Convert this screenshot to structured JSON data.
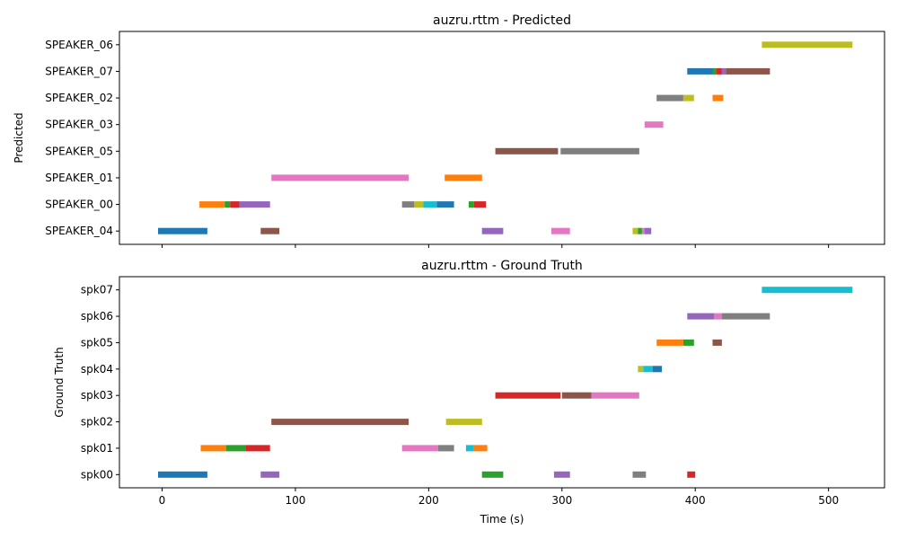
{
  "palette": {
    "blue": "#1f77b4",
    "orange": "#ff7f0e",
    "green": "#2ca02c",
    "red": "#d62728",
    "purple": "#9467bd",
    "brown": "#8c564b",
    "pink": "#e377c2",
    "gray": "#7f7f7f",
    "olive": "#bcbd22",
    "cyan": "#17becf"
  },
  "chart_data": [
    {
      "type": "timeline",
      "title": "auzru.rttm - Predicted",
      "ylabel": "Predicted",
      "xlabel": "",
      "xlim": [
        -32,
        542
      ],
      "xticks": [
        0,
        100,
        200,
        300,
        400,
        500
      ],
      "speakers": [
        "SPEAKER_04",
        "SPEAKER_00",
        "SPEAKER_01",
        "SPEAKER_05",
        "SPEAKER_03",
        "SPEAKER_02",
        "SPEAKER_07",
        "SPEAKER_06"
      ],
      "segments": [
        {
          "speaker": "SPEAKER_04",
          "start": -3,
          "end": 34,
          "color": "blue"
        },
        {
          "speaker": "SPEAKER_04",
          "start": 74,
          "end": 88,
          "color": "brown"
        },
        {
          "speaker": "SPEAKER_04",
          "start": 240,
          "end": 256,
          "color": "purple"
        },
        {
          "speaker": "SPEAKER_04",
          "start": 292,
          "end": 306,
          "color": "pink"
        },
        {
          "speaker": "SPEAKER_04",
          "start": 353,
          "end": 357,
          "color": "olive"
        },
        {
          "speaker": "SPEAKER_04",
          "start": 357,
          "end": 360,
          "color": "green"
        },
        {
          "speaker": "SPEAKER_04",
          "start": 360,
          "end": 362,
          "color": "pink"
        },
        {
          "speaker": "SPEAKER_04",
          "start": 362,
          "end": 367,
          "color": "purple"
        },
        {
          "speaker": "SPEAKER_00",
          "start": 28,
          "end": 47,
          "color": "orange"
        },
        {
          "speaker": "SPEAKER_00",
          "start": 47,
          "end": 51,
          "color": "green"
        },
        {
          "speaker": "SPEAKER_00",
          "start": 51,
          "end": 58,
          "color": "red"
        },
        {
          "speaker": "SPEAKER_00",
          "start": 58,
          "end": 81,
          "color": "purple"
        },
        {
          "speaker": "SPEAKER_00",
          "start": 180,
          "end": 189,
          "color": "gray"
        },
        {
          "speaker": "SPEAKER_00",
          "start": 189,
          "end": 196,
          "color": "olive"
        },
        {
          "speaker": "SPEAKER_00",
          "start": 196,
          "end": 206,
          "color": "cyan"
        },
        {
          "speaker": "SPEAKER_00",
          "start": 206,
          "end": 219,
          "color": "blue"
        },
        {
          "speaker": "SPEAKER_00",
          "start": 230,
          "end": 234,
          "color": "green"
        },
        {
          "speaker": "SPEAKER_00",
          "start": 234,
          "end": 243,
          "color": "red"
        },
        {
          "speaker": "SPEAKER_01",
          "start": 82,
          "end": 185,
          "color": "pink"
        },
        {
          "speaker": "SPEAKER_01",
          "start": 212,
          "end": 240,
          "color": "orange"
        },
        {
          "speaker": "SPEAKER_05",
          "start": 250,
          "end": 297,
          "color": "brown"
        },
        {
          "speaker": "SPEAKER_05",
          "start": 299,
          "end": 358,
          "color": "gray"
        },
        {
          "speaker": "SPEAKER_03",
          "start": 362,
          "end": 376,
          "color": "pink"
        },
        {
          "speaker": "SPEAKER_02",
          "start": 371,
          "end": 391,
          "color": "gray"
        },
        {
          "speaker": "SPEAKER_02",
          "start": 391,
          "end": 399,
          "color": "olive"
        },
        {
          "speaker": "SPEAKER_02",
          "start": 413,
          "end": 421,
          "color": "orange"
        },
        {
          "speaker": "SPEAKER_07",
          "start": 394,
          "end": 413,
          "color": "blue"
        },
        {
          "speaker": "SPEAKER_07",
          "start": 413,
          "end": 416,
          "color": "green"
        },
        {
          "speaker": "SPEAKER_07",
          "start": 416,
          "end": 420,
          "color": "red"
        },
        {
          "speaker": "SPEAKER_07",
          "start": 420,
          "end": 423,
          "color": "purple"
        },
        {
          "speaker": "SPEAKER_07",
          "start": 423,
          "end": 456,
          "color": "brown"
        },
        {
          "speaker": "SPEAKER_06",
          "start": 450,
          "end": 518,
          "color": "olive"
        }
      ]
    },
    {
      "type": "timeline",
      "title": "auzru.rttm - Ground Truth",
      "ylabel": "Ground Truth",
      "xlabel": "Time (s)",
      "xlim": [
        -32,
        542
      ],
      "xticks": [
        0,
        100,
        200,
        300,
        400,
        500
      ],
      "speakers": [
        "spk00",
        "spk01",
        "spk02",
        "spk03",
        "spk04",
        "spk05",
        "spk06",
        "spk07"
      ],
      "segments": [
        {
          "speaker": "spk00",
          "start": -3,
          "end": 34,
          "color": "blue"
        },
        {
          "speaker": "spk00",
          "start": 74,
          "end": 88,
          "color": "purple"
        },
        {
          "speaker": "spk00",
          "start": 240,
          "end": 256,
          "color": "green"
        },
        {
          "speaker": "spk00",
          "start": 294,
          "end": 306,
          "color": "purple"
        },
        {
          "speaker": "spk00",
          "start": 353,
          "end": 363,
          "color": "gray"
        },
        {
          "speaker": "spk00",
          "start": 394,
          "end": 400,
          "color": "red"
        },
        {
          "speaker": "spk01",
          "start": 29,
          "end": 48,
          "color": "orange"
        },
        {
          "speaker": "spk01",
          "start": 48,
          "end": 63,
          "color": "green"
        },
        {
          "speaker": "spk01",
          "start": 63,
          "end": 81,
          "color": "red"
        },
        {
          "speaker": "spk01",
          "start": 180,
          "end": 207,
          "color": "pink"
        },
        {
          "speaker": "spk01",
          "start": 207,
          "end": 219,
          "color": "gray"
        },
        {
          "speaker": "spk01",
          "start": 228,
          "end": 234,
          "color": "cyan"
        },
        {
          "speaker": "spk01",
          "start": 234,
          "end": 244,
          "color": "orange"
        },
        {
          "speaker": "spk02",
          "start": 82,
          "end": 185,
          "color": "brown"
        },
        {
          "speaker": "spk02",
          "start": 213,
          "end": 240,
          "color": "olive"
        },
        {
          "speaker": "spk03",
          "start": 250,
          "end": 299,
          "color": "red"
        },
        {
          "speaker": "spk03",
          "start": 300,
          "end": 322,
          "color": "brown"
        },
        {
          "speaker": "spk03",
          "start": 322,
          "end": 358,
          "color": "pink"
        },
        {
          "speaker": "spk04",
          "start": 357,
          "end": 361,
          "color": "olive"
        },
        {
          "speaker": "spk04",
          "start": 361,
          "end": 368,
          "color": "cyan"
        },
        {
          "speaker": "spk04",
          "start": 368,
          "end": 375,
          "color": "blue"
        },
        {
          "speaker": "spk05",
          "start": 371,
          "end": 391,
          "color": "orange"
        },
        {
          "speaker": "spk05",
          "start": 391,
          "end": 399,
          "color": "green"
        },
        {
          "speaker": "spk05",
          "start": 413,
          "end": 420,
          "color": "brown"
        },
        {
          "speaker": "spk06",
          "start": 394,
          "end": 414,
          "color": "purple"
        },
        {
          "speaker": "spk06",
          "start": 414,
          "end": 420,
          "color": "pink"
        },
        {
          "speaker": "spk06",
          "start": 420,
          "end": 456,
          "color": "gray"
        },
        {
          "speaker": "spk07",
          "start": 450,
          "end": 518,
          "color": "cyan"
        }
      ]
    }
  ]
}
